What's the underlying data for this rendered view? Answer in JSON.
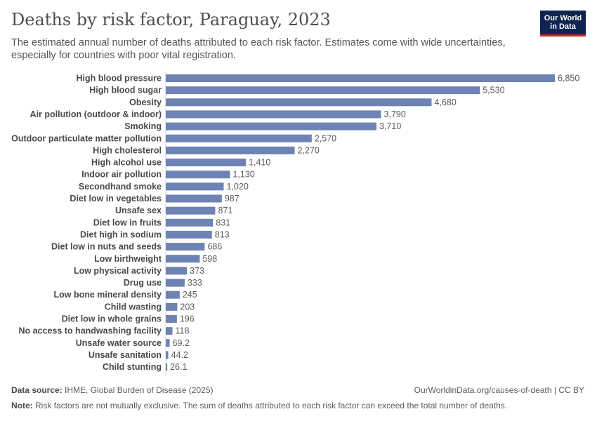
{
  "header": {
    "title": "Deaths by risk factor, Paraguay, 2023",
    "subtitle": "The estimated annual number of deaths attributed to each risk factor. Estimates come with wide uncertainties, especially for countries with poor vital registration.",
    "logo_line1": "Our World",
    "logo_line2": "in Data"
  },
  "footer": {
    "source_label": "Data source:",
    "source_text": "IHME, Global Burden of Disease (2025)",
    "url": "OurWorldinData.org/causes-of-death | CC BY",
    "note_label": "Note:",
    "note_text": "Risk factors are not mutually exclusive. The sum of deaths attributed to each risk factor can exceed the total number of deaths."
  },
  "chart_data": {
    "type": "bar",
    "orientation": "horizontal",
    "bar_color": "#6d83b3",
    "categories": [
      "High blood pressure",
      "High blood sugar",
      "Obesity",
      "Air pollution (outdoor & indoor)",
      "Smoking",
      "Outdoor particulate matter pollution",
      "High cholesterol",
      "High alcohol use",
      "Indoor air pollution",
      "Secondhand smoke",
      "Diet low in vegetables",
      "Unsafe sex",
      "Diet low in fruits",
      "Diet high in sodium",
      "Diet low in nuts and seeds",
      "Low birthweight",
      "Low physical activity",
      "Drug use",
      "Low bone mineral density",
      "Child wasting",
      "Diet low in whole grains",
      "No access to handwashing facility",
      "Unsafe water source",
      "Unsafe sanitation",
      "Child stunting"
    ],
    "values": [
      6850,
      5530,
      4680,
      3790,
      3710,
      2570,
      2270,
      1410,
      1130,
      1020,
      987,
      871,
      831,
      813,
      686,
      598,
      373,
      333,
      245,
      203,
      196,
      118,
      69.2,
      44.2,
      26.1
    ],
    "value_labels": [
      "6,850",
      "5,530",
      "4,680",
      "3,790",
      "3,710",
      "2,570",
      "2,270",
      "1,410",
      "1,130",
      "1,020",
      "987",
      "871",
      "831",
      "813",
      "686",
      "598",
      "373",
      "333",
      "245",
      "203",
      "196",
      "118",
      "69.2",
      "44.2",
      "26.1"
    ],
    "xlim": [
      0,
      6850
    ]
  }
}
